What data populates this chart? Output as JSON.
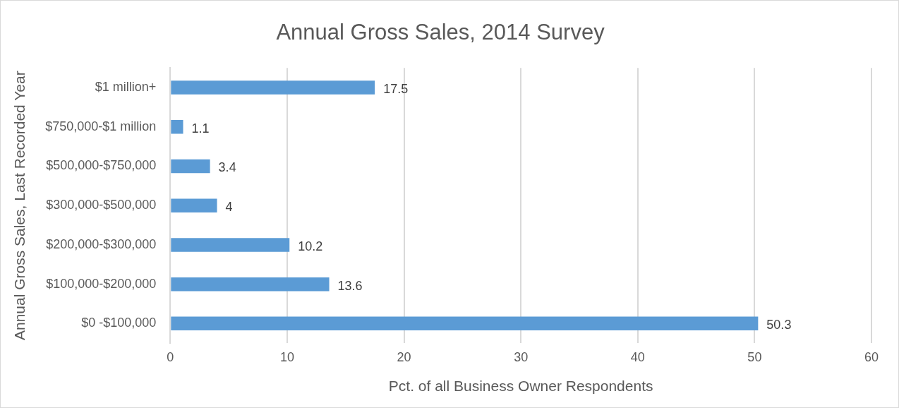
{
  "chart_data": {
    "type": "bar",
    "orientation": "horizontal",
    "title": "Annual Gross Sales, 2014 Survey",
    "xlabel": "Pct. of all Business Owner Respondents",
    "ylabel": "Annual Gross Sales, Last Recorded Year",
    "categories": [
      "$1 million+",
      "$750,000-$1 million",
      "$500,000-$750,000",
      "$300,000-$500,000",
      "$200,000-$300,000",
      "$100,000-$200,000",
      "$0 -$100,000"
    ],
    "values": [
      17.5,
      1.1,
      3.4,
      4,
      10.2,
      13.6,
      50.3
    ],
    "color": "#5b9bd5",
    "xlim": [
      0,
      60
    ],
    "xticks": [
      0,
      10,
      20,
      30,
      40,
      50,
      60
    ],
    "grid": "x",
    "data_labels": true
  }
}
